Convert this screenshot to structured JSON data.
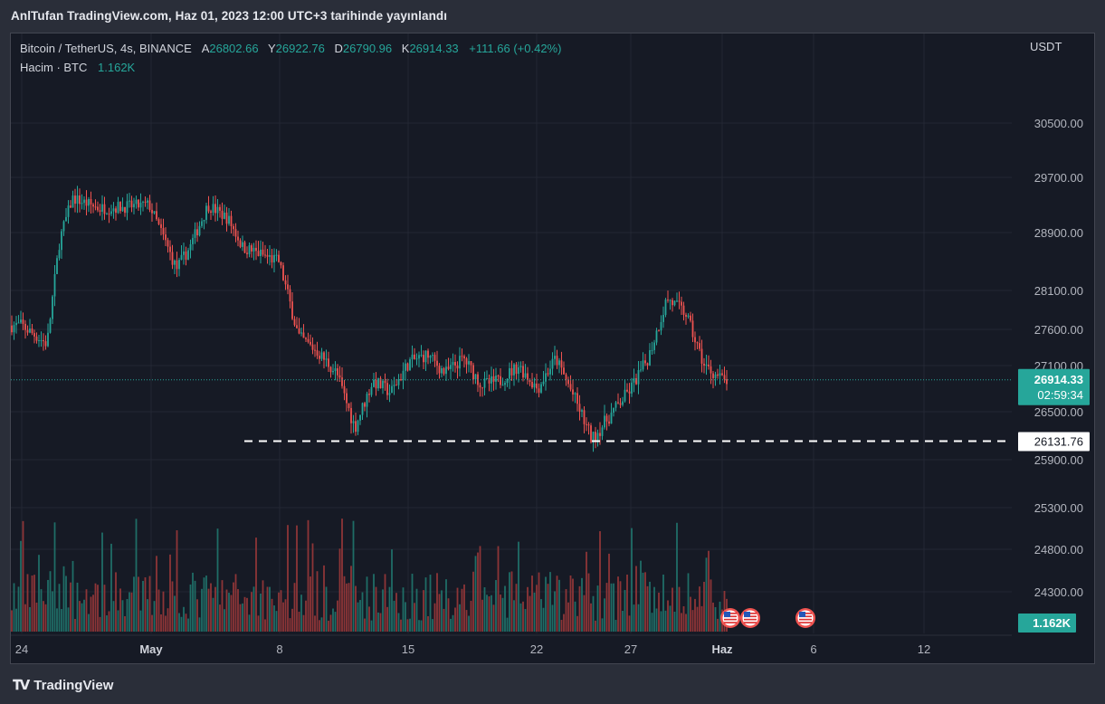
{
  "header": {
    "publish_text": "AnlTufan TradingView.com, Haz 01, 2023 12:00 UTC+3 tarihinde yayınlandı"
  },
  "legend": {
    "symbol": "Bitcoin / TetherUS, 4s, BINANCE",
    "o_label": "A",
    "o_value": "26802.66",
    "h_label": "Y",
    "h_value": "26922.76",
    "l_label": "D",
    "l_value": "26790.96",
    "c_label": "K",
    "c_value": "26914.33",
    "change": "+111.66 (+0.42%)",
    "volume_label": "Hacim · BTC",
    "volume_value": "1.162K"
  },
  "footer": {
    "brand": "TradingView"
  },
  "colors": {
    "up": "#26a69a",
    "down": "#ef5350",
    "up_volume": "#1f6d66",
    "down_volume": "#8d3537",
    "background": "#161a25",
    "grid": "#232733",
    "text": "#b2b5be"
  },
  "icons": [
    "us-flag-event-icon",
    "us-flag-event-icon",
    "us-flag-event-icon"
  ],
  "chart_data": {
    "type": "candlestick",
    "currency": "USDT",
    "price_ticks": [
      "30500.00",
      "29700.00",
      "28900.00",
      "28100.00",
      "27600.00",
      "27100.00",
      "26500.00",
      "25900.00",
      "25300.00",
      "24800.00",
      "24300.00"
    ],
    "x_ticks": [
      "24",
      "May",
      "8",
      "15",
      "22",
      "27",
      "Haz",
      "6",
      "12"
    ],
    "last_price": "26914.33",
    "countdown": "02:59:34",
    "horizontal_line": "26131.76",
    "volume_last": "1.162K",
    "anchors": [
      [
        "24",
        27650
      ],
      [
        "26",
        27400
      ],
      [
        "27",
        28800
      ],
      [
        "28",
        29400
      ],
      [
        "30",
        29250
      ],
      [
        "May",
        29300
      ],
      [
        "3",
        28400
      ],
      [
        "4",
        28700
      ],
      [
        "5",
        29300
      ],
      [
        "6",
        29100
      ],
      [
        "7",
        28700
      ],
      [
        "8",
        28500
      ],
      [
        "9",
        27500
      ],
      [
        "10",
        27300
      ],
      [
        "11",
        27000
      ],
      [
        "12",
        26300
      ],
      [
        "13",
        26900
      ],
      [
        "14",
        26750
      ],
      [
        "15",
        27150
      ],
      [
        "16",
        27250
      ],
      [
        "17",
        27000
      ],
      [
        "18",
        27200
      ],
      [
        "19",
        26850
      ],
      [
        "20",
        26900
      ],
      [
        "21",
        27100
      ],
      [
        "22",
        26800
      ],
      [
        "23",
        27200
      ],
      [
        "24",
        26700
      ],
      [
        "25",
        26150
      ],
      [
        "26",
        26450
      ],
      [
        "27",
        26800
      ],
      [
        "28",
        27200
      ],
      [
        "29",
        28000
      ],
      [
        "30",
        27800
      ],
      [
        "31",
        27100
      ],
      [
        "Haz",
        26900
      ]
    ]
  }
}
